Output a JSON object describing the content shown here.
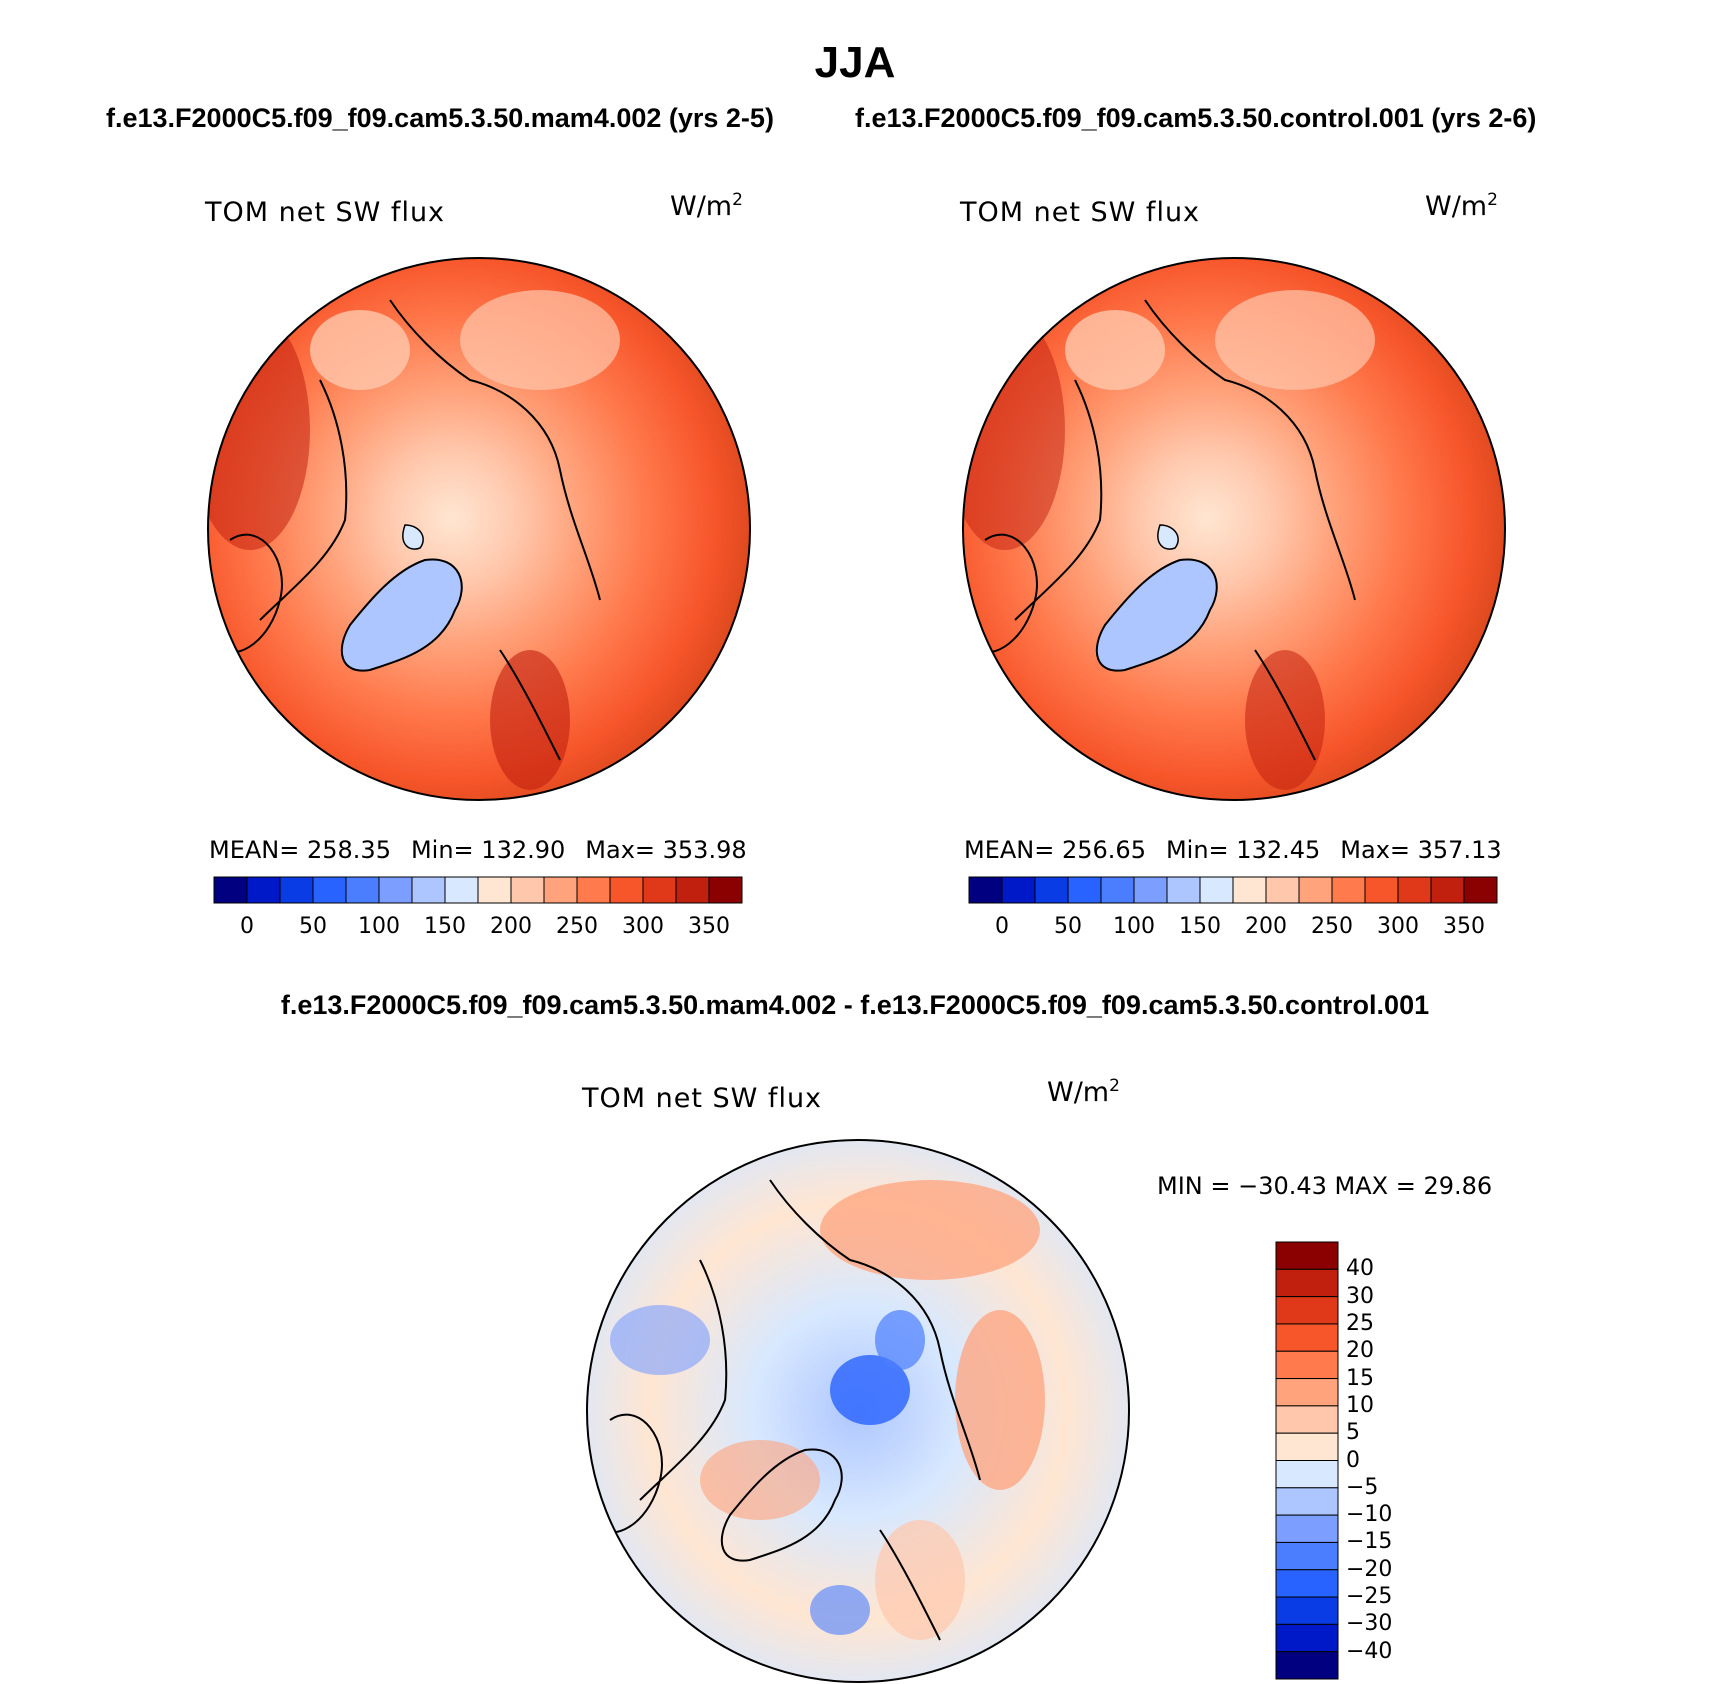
{
  "title": "JJA",
  "panels": [
    {
      "case_title": "f.e13.F2000C5.f09_f09.cam5.3.50.mam4.002 (yrs 2-5)",
      "variable": "TOM net SW flux",
      "units": "W/m",
      "units_exp": "2",
      "stats": {
        "mean": "MEAN= 258.35",
        "min": "Min= 132.90",
        "max": "Max= 353.98"
      }
    },
    {
      "case_title": "f.e13.F2000C5.f09_f09.cam5.3.50.control.001 (yrs 2-6)",
      "variable": "TOM net SW flux",
      "units": "W/m",
      "units_exp": "2",
      "stats": {
        "mean": "MEAN= 256.65",
        "min": "Min= 132.45",
        "max": "Max= 357.13"
      }
    }
  ],
  "diff_panel": {
    "title": "f.e13.F2000C5.f09_f09.cam5.3.50.mam4.002 - f.e13.F2000C5.f09_f09.cam5.3.50.control.001",
    "variable": "TOM net SW flux",
    "units": "W/m",
    "units_exp": "2",
    "stats": "MIN = −30.43 MAX =   29.86"
  },
  "abs_colorbar": {
    "colors": [
      "#000080",
      "#0019c8",
      "#0a3ce6",
      "#2862ff",
      "#4b7eff",
      "#7c9eff",
      "#aec6ff",
      "#d7e8ff",
      "#ffe6d2",
      "#ffc8ad",
      "#ffa37c",
      "#ff7a4d",
      "#f7552a",
      "#e0391a",
      "#c2200f",
      "#8b0000"
    ],
    "labels": [
      "0",
      "50",
      "100",
      "150",
      "200",
      "250",
      "300",
      "350"
    ]
  },
  "diff_colorbar": {
    "colors": [
      "#000080",
      "#0019c8",
      "#0a3ce6",
      "#2862ff",
      "#4b7eff",
      "#7c9eff",
      "#aec6ff",
      "#d7e8ff",
      "#ffe6d2",
      "#ffc8ad",
      "#ffa37c",
      "#ff7a4d",
      "#f7552a",
      "#e0391a",
      "#c2200f",
      "#8b0000"
    ],
    "labels": [
      "40",
      "30",
      "25",
      "20",
      "15",
      "10",
      "5",
      "0",
      "−5",
      "−10",
      "−15",
      "−20",
      "−25",
      "−30",
      "−40"
    ]
  }
}
